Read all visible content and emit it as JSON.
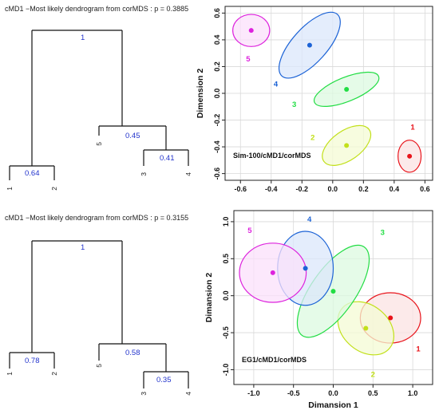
{
  "chart_data": [
    {
      "type": "dendrogram",
      "title": "cMD1 −Most likely dendrogram from corMDS : p = 0.3885",
      "leaves": [
        "1",
        "2",
        "5",
        "3",
        "4"
      ],
      "height_labels": [
        "1",
        "0.45",
        "0.41",
        "0.64"
      ]
    },
    {
      "type": "scatter",
      "xlabel": "",
      "ylabel": "Dimension 2",
      "annotation": "Sim-100/cMD1/corMDS",
      "xlim": [
        -0.7,
        0.65
      ],
      "ylim": [
        -0.65,
        0.65
      ],
      "xticks": [
        "-0.6",
        "-0.4",
        "-0.2",
        "0.0",
        "0.2",
        "0.4",
        "0.6"
      ],
      "yticks": [
        "0.6",
        "0.4",
        "0.2",
        "0.0",
        "-0.2",
        "-0.4",
        "-0.6"
      ],
      "grid": true,
      "clusters": [
        {
          "label": "1",
          "x": 0.5,
          "y": -0.47,
          "rx": 0.075,
          "ry": 0.12,
          "angle": 0,
          "color": "#e8141b",
          "fill": "#fbe3e3",
          "lx": 0.52,
          "ly": -0.27
        },
        {
          "label": "2",
          "x": 0.09,
          "y": -0.39,
          "rx": 0.18,
          "ry": 0.11,
          "angle": 35,
          "color": "#c2e01a",
          "fill": "#f4fbd4",
          "lx": -0.13,
          "ly": -0.35
        },
        {
          "label": "3",
          "x": 0.09,
          "y": 0.03,
          "rx": 0.225,
          "ry": 0.09,
          "angle": 22,
          "color": "#22dd44",
          "fill": "#dcf9e0",
          "lx": -0.25,
          "ly": -0.1
        },
        {
          "label": "4",
          "x": -0.15,
          "y": 0.36,
          "rx": 0.27,
          "ry": 0.13,
          "angle": 48,
          "color": "#1c63d6",
          "fill": "#dbe7fb",
          "lx": -0.37,
          "ly": 0.05
        },
        {
          "label": "5",
          "x": -0.53,
          "y": 0.47,
          "rx": 0.12,
          "ry": 0.12,
          "angle": 0,
          "color": "#dd22dd",
          "fill": "#fbe0fb",
          "lx": -0.55,
          "ly": 0.24
        }
      ]
    },
    {
      "type": "dendrogram",
      "title": "cMD1 −Most likely dendrogram from corMDS : p = 0.3155",
      "leaves": [
        "1",
        "2",
        "5",
        "3",
        "4"
      ],
      "height_labels": [
        "1",
        "0.58",
        "0.35",
        "0.78"
      ]
    },
    {
      "type": "scatter",
      "xlabel": "Dimansion 1",
      "ylabel": "Dimansion 2",
      "annotation": "EG1/cMD1/corMDS",
      "xlim": [
        -1.25,
        1.25
      ],
      "ylim": [
        -1.2,
        1.15
      ],
      "xticks": [
        "-1.0",
        "-0.5",
        "0.0",
        "0.5",
        "1.0"
      ],
      "yticks": [
        "1.0",
        "0.5",
        "0.0",
        "-0.5",
        "-1.0"
      ],
      "grid": true,
      "clusters": [
        {
          "label": "1",
          "x": 0.72,
          "y": -0.3,
          "rx": 0.38,
          "ry": 0.34,
          "angle": 0,
          "color": "#e8141b",
          "fill": "#fbe3e3",
          "lx": 1.07,
          "ly": -0.75
        },
        {
          "label": "2",
          "x": 0.41,
          "y": -0.44,
          "rx": 0.39,
          "ry": 0.31,
          "angle": -40,
          "color": "#c2e01a",
          "fill": "#f4fbd4",
          "lx": 0.5,
          "ly": -1.1
        },
        {
          "label": "3",
          "x": 0.0,
          "y": 0.06,
          "rx": 0.68,
          "ry": 0.3,
          "angle": 55,
          "color": "#22dd44",
          "fill": "#dcf9e0",
          "lx": 0.62,
          "ly": 0.82
        },
        {
          "label": "4",
          "x": -0.35,
          "y": 0.37,
          "rx": 0.35,
          "ry": 0.5,
          "angle": 0,
          "color": "#1c63d6",
          "fill": "#dbe7fb",
          "lx": -0.3,
          "ly": 1.0
        },
        {
          "label": "5",
          "x": -0.76,
          "y": 0.31,
          "rx": 0.42,
          "ry": 0.4,
          "angle": 0,
          "color": "#dd22dd",
          "fill": "#fbe0fb",
          "lx": -1.05,
          "ly": 0.85
        }
      ]
    }
  ]
}
